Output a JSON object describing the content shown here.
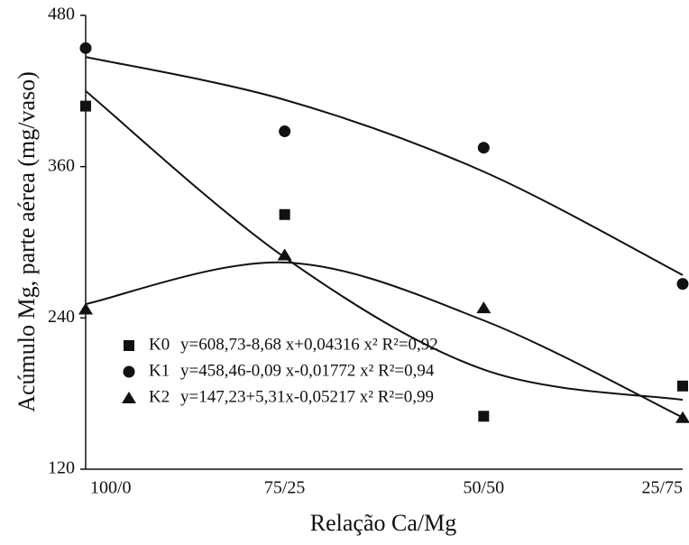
{
  "chart_data": {
    "type": "scatter",
    "y_label": "Acúmulo Mg, parte aérea (mg/vaso)",
    "x_label": "Relação Ca/Mg",
    "categories": [
      "100/0",
      "75/25",
      "50/50",
      "25/75"
    ],
    "ylim": [
      120,
      480
    ],
    "yticks": [
      120,
      240,
      360,
      480
    ],
    "series": [
      {
        "name": "K0",
        "marker": "square",
        "color": "#111111",
        "equation": "y=608,73-8,68 x+0,04316 x²  R²=0,92",
        "values": [
          408,
          322,
          162,
          186
        ],
        "fit": [
          420,
          288,
          199,
          175
        ]
      },
      {
        "name": "K1",
        "marker": "circle",
        "color": "#111111",
        "equation": "y=458,46-0,09 x-0,01772 x²  R²=0,94",
        "values": [
          454,
          388,
          375,
          267
        ],
        "fit": [
          447,
          413,
          356,
          274
        ]
      },
      {
        "name": "K2",
        "marker": "triangle",
        "color": "#111111",
        "equation": "y=147,23+5,31x-0,05217 x²  R²=0,99",
        "values": [
          247,
          290,
          248,
          161
        ],
        "fit": [
          251,
          284,
          238,
          161
        ]
      }
    ]
  }
}
